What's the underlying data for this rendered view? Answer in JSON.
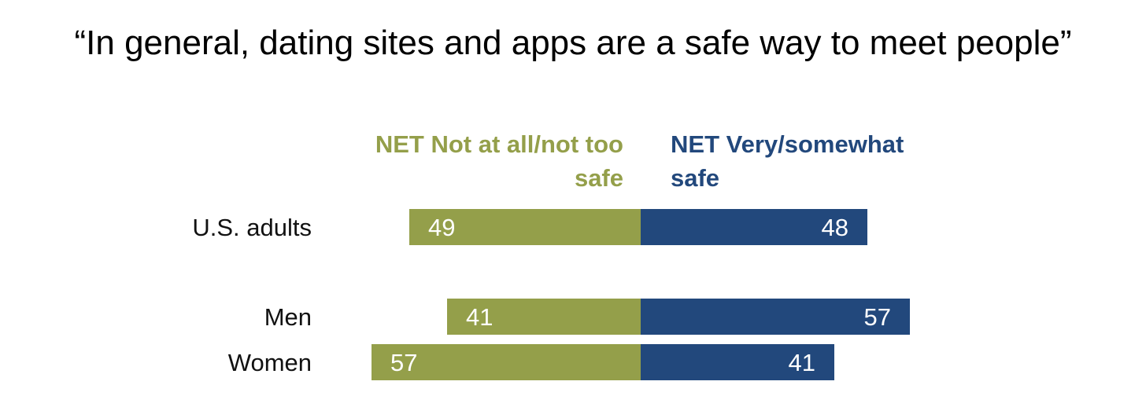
{
  "chart_data": {
    "type": "bar",
    "title": "“In general, dating sites and apps are a safe way to meet people”",
    "orientation": "horizontal-diverging",
    "categories": [
      "U.S. adults",
      "Men",
      "Women"
    ],
    "series": [
      {
        "name": "NET Not at all/not too safe",
        "name_lines": [
          "NET Not at all/not too",
          "safe"
        ],
        "values": [
          49,
          41,
          57
        ],
        "color": "#949f4a",
        "side": "left"
      },
      {
        "name": "NET Very/somewhat safe",
        "name_lines": [
          "NET Very/somewhat",
          "safe"
        ],
        "values": [
          48,
          57,
          41
        ],
        "color": "#22487c",
        "side": "right"
      }
    ],
    "xlabel": "",
    "ylabel": "",
    "grid": false,
    "legend": "top"
  }
}
